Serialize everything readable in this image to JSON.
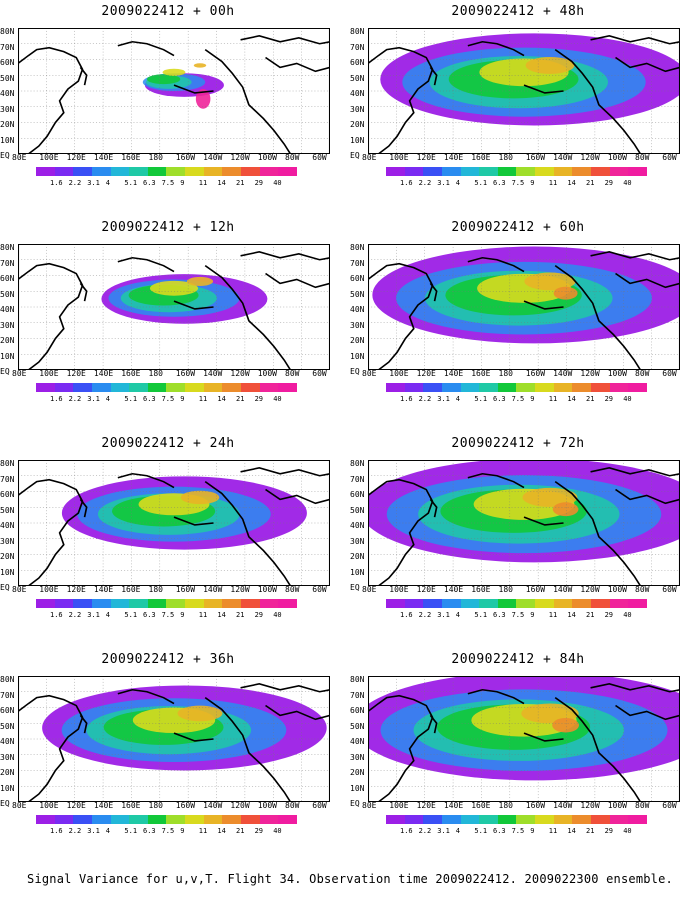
{
  "panels": [
    {
      "title": "2009022412 + 00h",
      "coverage": 0.2
    },
    {
      "title": "2009022412 + 48h",
      "coverage": 0.78
    },
    {
      "title": "2009022412 + 12h",
      "coverage": 0.42
    },
    {
      "title": "2009022412 + 60h",
      "coverage": 0.82
    },
    {
      "title": "2009022412 + 24h",
      "coverage": 0.62
    },
    {
      "title": "2009022412 + 72h",
      "coverage": 0.88
    },
    {
      "title": "2009022412 + 36h",
      "coverage": 0.72
    },
    {
      "title": "2009022412 + 84h",
      "coverage": 0.92
    }
  ],
  "lat_labels": [
    "80N",
    "70N",
    "60N",
    "50N",
    "40N",
    "30N",
    "20N",
    "10N",
    "EQ"
  ],
  "lon_labels": [
    "80E",
    "100E",
    "120E",
    "140E",
    "160E",
    "180",
    "160W",
    "140W",
    "120W",
    "100W",
    "80W",
    "60W"
  ],
  "colorbar": {
    "labels": [
      "1.6",
      "2.2",
      "3.1",
      "4",
      "5.1",
      "6.3",
      "7.5",
      "9",
      "11",
      "14",
      "21",
      "29",
      "40"
    ],
    "colors": [
      "#9c1fe6",
      "#7a2bf2",
      "#3a50f5",
      "#2a8cf0",
      "#22b7d8",
      "#1fc9a6",
      "#12c83a",
      "#9fde2a",
      "#d8da1e",
      "#e8b426",
      "#ec8c2c",
      "#f0503a",
      "#f0249a",
      "#f01ca0"
    ]
  },
  "caption": "Signal Variance for u,v,T. Flight 34. Observation time 2009022412. 2009022300 ensemble."
}
